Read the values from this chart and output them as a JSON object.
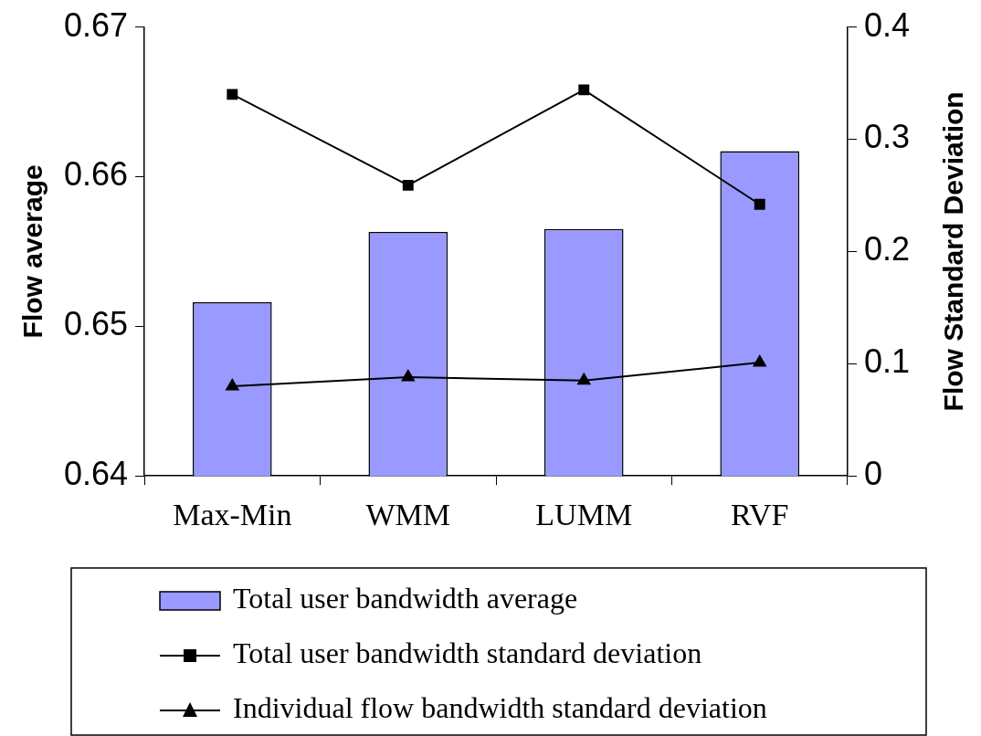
{
  "chart_data": {
    "type": "bar",
    "categories": [
      "Max-Min",
      "WMM",
      "LUMM",
      "RVF"
    ],
    "ylabel": "Flow average",
    "y2label": "Flow Standard Deviation",
    "ylim": [
      0.64,
      0.67
    ],
    "yticks": [
      0.64,
      0.65,
      0.66,
      0.67
    ],
    "y2lim": [
      0,
      0.4
    ],
    "y2ticks": [
      0,
      0.1,
      0.2,
      0.3,
      0.4
    ],
    "grid": false,
    "legend": "bottom",
    "series": [
      {
        "name": "Total user bandwidth average",
        "color": "#9999ff",
        "values": [
          0.6516,
          0.6563,
          0.6565,
          0.6617
        ]
      },
      {
        "name": "Total user bandwidth standard deviation",
        "type": "line",
        "axis": "y2",
        "color": "#000000",
        "marker": "square",
        "values": [
          0.34,
          0.259,
          0.344,
          0.242
        ]
      },
      {
        "name": "Individual flow bandwidth standard deviation",
        "type": "line",
        "axis": "y2",
        "color": "#000000",
        "marker": "triangle",
        "values": [
          0.08,
          0.088,
          0.085,
          0.101
        ]
      }
    ]
  }
}
